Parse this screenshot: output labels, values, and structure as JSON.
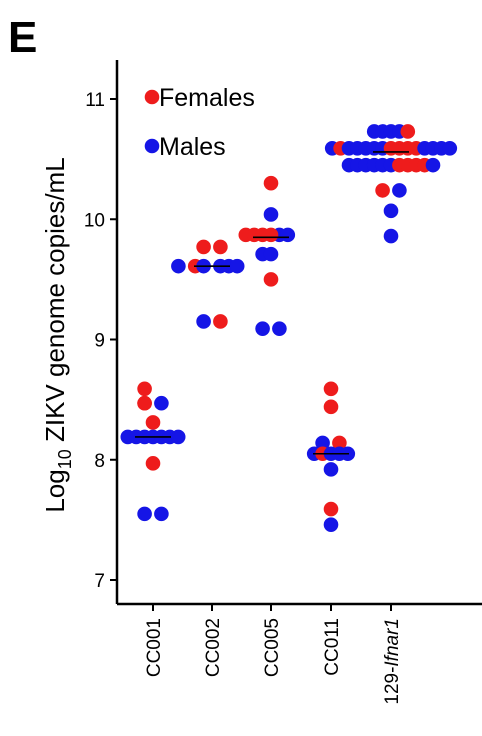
{
  "panel_label": "E",
  "chart_data": {
    "type": "scatter",
    "subtype": "dot-strip-plot",
    "title": "",
    "ylabel_prefix": "Log",
    "ylabel_subscript": "10",
    "ylabel_main": " ZIKV genome copies/mL",
    "xlabel": "",
    "ylim": [
      6.8,
      11.3
    ],
    "yticks": [
      "7",
      "8",
      "9",
      "10",
      "11"
    ],
    "categories": [
      "CC001",
      "CC002",
      "CC005",
      "CC011",
      "129-"
    ],
    "category_italic_suffix": "Ifnar1",
    "legend": {
      "placement": "top-left",
      "entries": [
        {
          "label": "Females",
          "color": "#ee1c1c"
        },
        {
          "label": "Males",
          "color": "#1515e6"
        }
      ]
    },
    "medians": [
      8.19,
      9.61,
      9.85,
      8.05,
      10.56
    ],
    "points": [
      {
        "cat": 0,
        "x_off": -0.4,
        "y": 8.59,
        "sex": "Females"
      },
      {
        "cat": 0,
        "x_off": -0.4,
        "y": 8.47,
        "sex": "Females"
      },
      {
        "cat": 0,
        "x_off": 0.4,
        "y": 8.47,
        "sex": "Males"
      },
      {
        "cat": 0,
        "x_off": -0.4,
        "y": 8.47,
        "sex": "Females"
      },
      {
        "cat": 0,
        "x_off": 0.0,
        "y": 8.31,
        "sex": "Females"
      },
      {
        "cat": 0,
        "x_off": -0.4,
        "y": 8.19,
        "sex": "Males"
      },
      {
        "cat": 0,
        "x_off": 0.0,
        "y": 8.19,
        "sex": "Males"
      },
      {
        "cat": 0,
        "x_off": 0.4,
        "y": 8.19,
        "sex": "Males"
      },
      {
        "cat": 0,
        "x_off": -1.2,
        "y": 8.19,
        "sex": "Males"
      },
      {
        "cat": 0,
        "x_off": -0.8,
        "y": 8.19,
        "sex": "Males"
      },
      {
        "cat": 0,
        "x_off": 0.8,
        "y": 8.19,
        "sex": "Males"
      },
      {
        "cat": 0,
        "x_off": 1.2,
        "y": 8.19,
        "sex": "Males"
      },
      {
        "cat": 0,
        "x_off": 0.0,
        "y": 7.97,
        "sex": "Females"
      },
      {
        "cat": 0,
        "x_off": -0.4,
        "y": 7.55,
        "sex": "Males"
      },
      {
        "cat": 0,
        "x_off": 0.4,
        "y": 7.55,
        "sex": "Males"
      },
      {
        "cat": 1,
        "x_off": -0.4,
        "y": 9.77,
        "sex": "Females"
      },
      {
        "cat": 1,
        "x_off": 0.4,
        "y": 9.77,
        "sex": "Females"
      },
      {
        "cat": 1,
        "x_off": -1.6,
        "y": 9.61,
        "sex": "Males"
      },
      {
        "cat": 1,
        "x_off": -0.8,
        "y": 9.61,
        "sex": "Females"
      },
      {
        "cat": 1,
        "x_off": -0.4,
        "y": 9.61,
        "sex": "Males"
      },
      {
        "cat": 1,
        "x_off": 0.4,
        "y": 9.61,
        "sex": "Males"
      },
      {
        "cat": 1,
        "x_off": 0.8,
        "y": 9.61,
        "sex": "Males"
      },
      {
        "cat": 1,
        "x_off": 1.2,
        "y": 9.61,
        "sex": "Males"
      },
      {
        "cat": 1,
        "x_off": -0.4,
        "y": 9.15,
        "sex": "Males"
      },
      {
        "cat": 1,
        "x_off": 0.4,
        "y": 9.15,
        "sex": "Females"
      },
      {
        "cat": 2,
        "x_off": 0.0,
        "y": 10.3,
        "sex": "Females"
      },
      {
        "cat": 2,
        "x_off": 0.0,
        "y": 10.04,
        "sex": "Males"
      },
      {
        "cat": 2,
        "x_off": -1.2,
        "y": 9.87,
        "sex": "Females"
      },
      {
        "cat": 2,
        "x_off": -0.8,
        "y": 9.87,
        "sex": "Females"
      },
      {
        "cat": 2,
        "x_off": -0.4,
        "y": 9.87,
        "sex": "Females"
      },
      {
        "cat": 2,
        "x_off": 0.4,
        "y": 9.87,
        "sex": "Males"
      },
      {
        "cat": 2,
        "x_off": 0.8,
        "y": 9.87,
        "sex": "Males"
      },
      {
        "cat": 2,
        "x_off": 0.0,
        "y": 9.87,
        "sex": "Females"
      },
      {
        "cat": 2,
        "x_off": -0.4,
        "y": 9.71,
        "sex": "Males"
      },
      {
        "cat": 2,
        "x_off": 0.0,
        "y": 9.71,
        "sex": "Males"
      },
      {
        "cat": 2,
        "x_off": 0.0,
        "y": 9.5,
        "sex": "Females"
      },
      {
        "cat": 2,
        "x_off": -0.4,
        "y": 9.09,
        "sex": "Males"
      },
      {
        "cat": 2,
        "x_off": 0.4,
        "y": 9.09,
        "sex": "Males"
      },
      {
        "cat": 3,
        "x_off": 0.0,
        "y": 8.59,
        "sex": "Females"
      },
      {
        "cat": 3,
        "x_off": 0.0,
        "y": 8.44,
        "sex": "Females"
      },
      {
        "cat": 3,
        "x_off": -0.4,
        "y": 8.14,
        "sex": "Males"
      },
      {
        "cat": 3,
        "x_off": 0.4,
        "y": 8.14,
        "sex": "Females"
      },
      {
        "cat": 3,
        "x_off": -0.8,
        "y": 8.05,
        "sex": "Males"
      },
      {
        "cat": 3,
        "x_off": -0.4,
        "y": 8.05,
        "sex": "Females"
      },
      {
        "cat": 3,
        "x_off": 0.0,
        "y": 8.05,
        "sex": "Males"
      },
      {
        "cat": 3,
        "x_off": 0.4,
        "y": 8.05,
        "sex": "Males"
      },
      {
        "cat": 3,
        "x_off": 0.8,
        "y": 8.05,
        "sex": "Males"
      },
      {
        "cat": 3,
        "x_off": 0.0,
        "y": 7.92,
        "sex": "Males"
      },
      {
        "cat": 3,
        "x_off": 0.0,
        "y": 7.59,
        "sex": "Females"
      },
      {
        "cat": 3,
        "x_off": 0.0,
        "y": 7.46,
        "sex": "Males"
      },
      {
        "cat": 4,
        "x_off": -0.8,
        "y": 10.73,
        "sex": "Males"
      },
      {
        "cat": 4,
        "x_off": -0.4,
        "y": 10.73,
        "sex": "Males"
      },
      {
        "cat": 4,
        "x_off": 0.0,
        "y": 10.73,
        "sex": "Males"
      },
      {
        "cat": 4,
        "x_off": 0.4,
        "y": 10.73,
        "sex": "Males"
      },
      {
        "cat": 4,
        "x_off": 0.8,
        "y": 10.73,
        "sex": "Females"
      },
      {
        "cat": 4,
        "x_off": -2.8,
        "y": 10.59,
        "sex": "Males"
      },
      {
        "cat": 4,
        "x_off": -2.4,
        "y": 10.59,
        "sex": "Females"
      },
      {
        "cat": 4,
        "x_off": -2.0,
        "y": 10.59,
        "sex": "Males"
      },
      {
        "cat": 4,
        "x_off": -1.6,
        "y": 10.59,
        "sex": "Males"
      },
      {
        "cat": 4,
        "x_off": -1.2,
        "y": 10.59,
        "sex": "Males"
      },
      {
        "cat": 4,
        "x_off": -0.8,
        "y": 10.59,
        "sex": "Males"
      },
      {
        "cat": 4,
        "x_off": -0.4,
        "y": 10.59,
        "sex": "Males"
      },
      {
        "cat": 4,
        "x_off": 0.0,
        "y": 10.59,
        "sex": "Females"
      },
      {
        "cat": 4,
        "x_off": 0.4,
        "y": 10.59,
        "sex": "Females"
      },
      {
        "cat": 4,
        "x_off": 0.8,
        "y": 10.59,
        "sex": "Females"
      },
      {
        "cat": 4,
        "x_off": 1.2,
        "y": 10.59,
        "sex": "Females"
      },
      {
        "cat": 4,
        "x_off": 1.6,
        "y": 10.59,
        "sex": "Males"
      },
      {
        "cat": 4,
        "x_off": 2.0,
        "y": 10.59,
        "sex": "Males"
      },
      {
        "cat": 4,
        "x_off": 2.4,
        "y": 10.59,
        "sex": "Males"
      },
      {
        "cat": 4,
        "x_off": 2.8,
        "y": 10.59,
        "sex": "Males"
      },
      {
        "cat": 4,
        "x_off": -2.0,
        "y": 10.45,
        "sex": "Males"
      },
      {
        "cat": 4,
        "x_off": -1.6,
        "y": 10.45,
        "sex": "Males"
      },
      {
        "cat": 4,
        "x_off": -1.2,
        "y": 10.45,
        "sex": "Males"
      },
      {
        "cat": 4,
        "x_off": -0.8,
        "y": 10.45,
        "sex": "Males"
      },
      {
        "cat": 4,
        "x_off": -0.4,
        "y": 10.45,
        "sex": "Males"
      },
      {
        "cat": 4,
        "x_off": 0.0,
        "y": 10.45,
        "sex": "Males"
      },
      {
        "cat": 4,
        "x_off": 0.4,
        "y": 10.45,
        "sex": "Females"
      },
      {
        "cat": 4,
        "x_off": 0.8,
        "y": 10.45,
        "sex": "Females"
      },
      {
        "cat": 4,
        "x_off": 1.2,
        "y": 10.45,
        "sex": "Females"
      },
      {
        "cat": 4,
        "x_off": 1.6,
        "y": 10.45,
        "sex": "Females"
      },
      {
        "cat": 4,
        "x_off": 2.0,
        "y": 10.45,
        "sex": "Males"
      },
      {
        "cat": 4,
        "x_off": -0.4,
        "y": 10.24,
        "sex": "Females"
      },
      {
        "cat": 4,
        "x_off": 0.4,
        "y": 10.24,
        "sex": "Males"
      },
      {
        "cat": 4,
        "x_off": 0.0,
        "y": 10.07,
        "sex": "Males"
      },
      {
        "cat": 4,
        "x_off": 0.0,
        "y": 9.86,
        "sex": "Males"
      }
    ]
  }
}
